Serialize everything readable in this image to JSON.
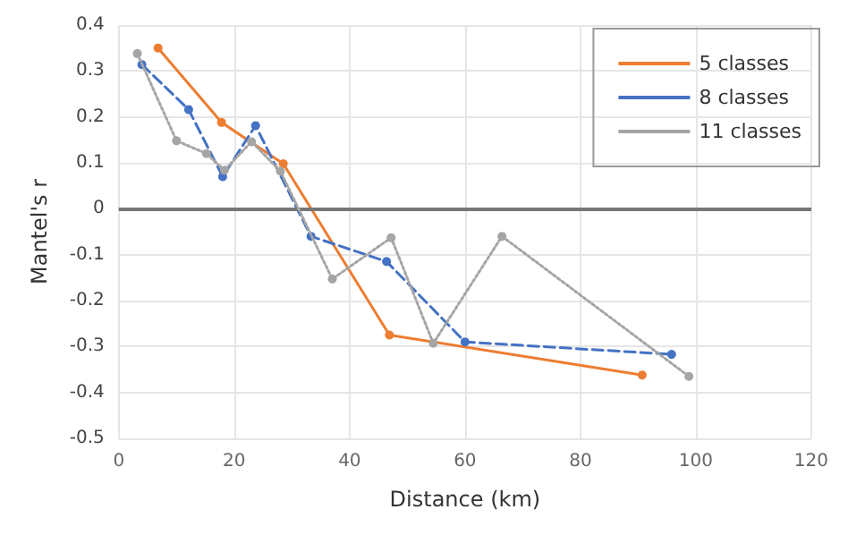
{
  "chart_data": {
    "type": "line",
    "xlabel": "Distance (km)",
    "ylabel": "Mantel's r",
    "xlim": [
      0,
      120
    ],
    "xticks": [
      0,
      20,
      40,
      60,
      80,
      100,
      120
    ],
    "ylim": [
      -0.5,
      0.4
    ],
    "yticks": [
      -0.5,
      -0.4,
      -0.3,
      -0.2,
      -0.1,
      0,
      0.1,
      0.2,
      0.3,
      0.4
    ],
    "grid": true,
    "legend": "top right",
    "marker": "circle",
    "ref_lines": [
      {
        "axis": "y",
        "value": 0,
        "color": "#767676"
      }
    ],
    "series": [
      {
        "name": "5 classes",
        "color": "#ed7d31",
        "line_style": "solid",
        "x": [
          6.8,
          17.8,
          28.5,
          46.9,
          90.7
        ],
        "values": [
          0.35,
          0.188,
          0.098,
          -0.275,
          -0.362
        ]
      },
      {
        "name": "8 classes",
        "color": "#4472c4",
        "line_style": "dashed",
        "x": [
          4,
          12.1,
          18,
          23.7,
          33.3,
          46.4,
          60,
          95.8
        ],
        "values": [
          0.314,
          0.216,
          0.07,
          0.181,
          -0.06,
          -0.115,
          -0.29,
          -0.317
        ]
      },
      {
        "name": "11 classes",
        "color": "#a5a5a5",
        "line_style": "dotted",
        "x": [
          3.2,
          10,
          15.2,
          18.3,
          23,
          28,
          37,
          47.2,
          54.5,
          66.4,
          98.8
        ],
        "values": [
          0.338,
          0.148,
          0.12,
          0.084,
          0.146,
          0.082,
          -0.153,
          -0.063,
          -0.293,
          -0.06,
          -0.365
        ]
      }
    ]
  }
}
